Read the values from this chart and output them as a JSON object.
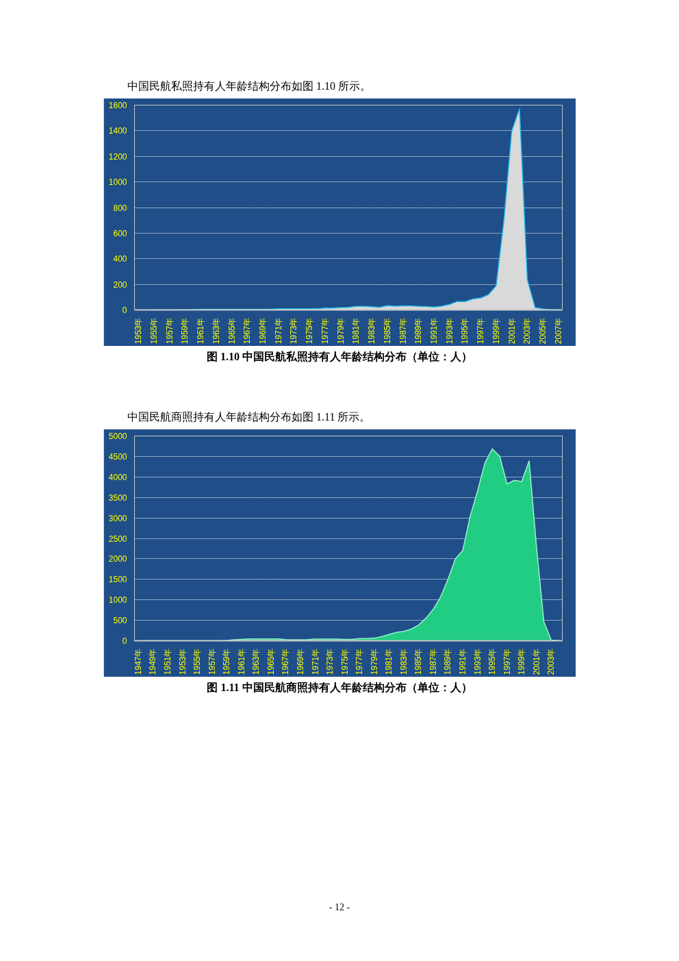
{
  "chart_data": [
    {
      "type": "area",
      "title": "图 1.10  中国民航私照持有人年龄结构分布（单位：人）",
      "annotations": [
        "中国民航私照持有人年龄结构分布如图 1.10 所示。"
      ],
      "categories": [
        "1953年",
        null,
        "1955年",
        null,
        "1957年",
        null,
        "1959年",
        null,
        "1961年",
        null,
        "1963年",
        null,
        "1965年",
        null,
        "1967年",
        null,
        "1969年",
        null,
        "1971年",
        null,
        "1973年",
        null,
        "1975年",
        null,
        "1977年",
        null,
        "1979年",
        null,
        "1981年",
        null,
        "1983年",
        null,
        "1985年",
        null,
        "1987年",
        null,
        "1989年",
        null,
        "1991年",
        null,
        "1993年",
        null,
        "1995年",
        null,
        "1997年",
        null,
        "1999年",
        null,
        "2001年",
        null,
        "2003年",
        null,
        "2005年",
        null,
        "2007年"
      ],
      "series": [
        {
          "color": "#d9d9d9",
          "values": [
            0,
            0,
            1,
            1,
            2,
            2,
            3,
            3,
            5,
            5,
            5,
            5,
            5,
            5,
            5,
            5,
            5,
            5,
            10,
            10,
            10,
            10,
            10,
            10,
            15,
            15,
            19,
            20,
            28,
            28,
            25,
            20,
            34,
            30,
            32,
            32,
            28,
            27,
            23,
            30,
            43,
            66,
            66,
            85,
            94,
            119,
            189,
            700,
            1396,
            1572,
            236,
            19,
            8,
            3,
            2
          ]
        }
      ],
      "ylim": [
        0,
        1600
      ],
      "yticks": [
        0,
        200,
        400,
        600,
        800,
        1000,
        1200,
        1400,
        1600
      ],
      "grid": "y"
    },
    {
      "type": "area",
      "title": "图 1.11  中国民航商照持有人年龄结构分布（单位：人）",
      "annotations": [
        "中国民航商照持有人年龄结构分布如图 1.11 所示。",
        "- 12 -"
      ],
      "categories": [
        "1947年",
        null,
        "1949年",
        null,
        "1951年",
        null,
        "1953年",
        null,
        "1955年",
        null,
        "1957年",
        null,
        "1959年",
        null,
        "1961年",
        null,
        "1963年",
        null,
        "1965年",
        null,
        "1967年",
        null,
        "1969年",
        null,
        "1971年",
        null,
        "1973年",
        null,
        "1975年",
        null,
        "1977年",
        null,
        "1979年",
        null,
        "1981年",
        null,
        "1983年",
        null,
        "1985年",
        null,
        "1987年",
        null,
        "1989年",
        null,
        "1991年",
        null,
        "1993年",
        null,
        "1995年",
        null,
        "1997年",
        null,
        "1999年",
        null,
        "2001年",
        null,
        "2003年",
        null
      ],
      "series": [
        {
          "color": "#21cd82",
          "values": [
            0,
            0,
            0,
            0,
            0,
            0,
            0,
            0,
            0,
            0,
            0,
            0,
            10,
            25,
            35,
            45,
            45,
            40,
            45,
            45,
            30,
            25,
            25,
            30,
            40,
            40,
            40,
            40,
            35,
            35,
            53,
            55,
            65,
            100,
            154,
            207,
            230,
            284,
            384,
            550,
            768,
            1070,
            1495,
            2000,
            2204,
            3032,
            3652,
            4332,
            4687,
            4510,
            3830,
            3918,
            3889,
            4391,
            2300,
            461,
            18,
            5
          ]
        }
      ],
      "ylim": [
        0,
        5000
      ],
      "yticks": [
        0,
        500,
        1000,
        1500,
        2000,
        2500,
        3000,
        3500,
        4000,
        4500,
        5000
      ],
      "grid": "y"
    }
  ]
}
